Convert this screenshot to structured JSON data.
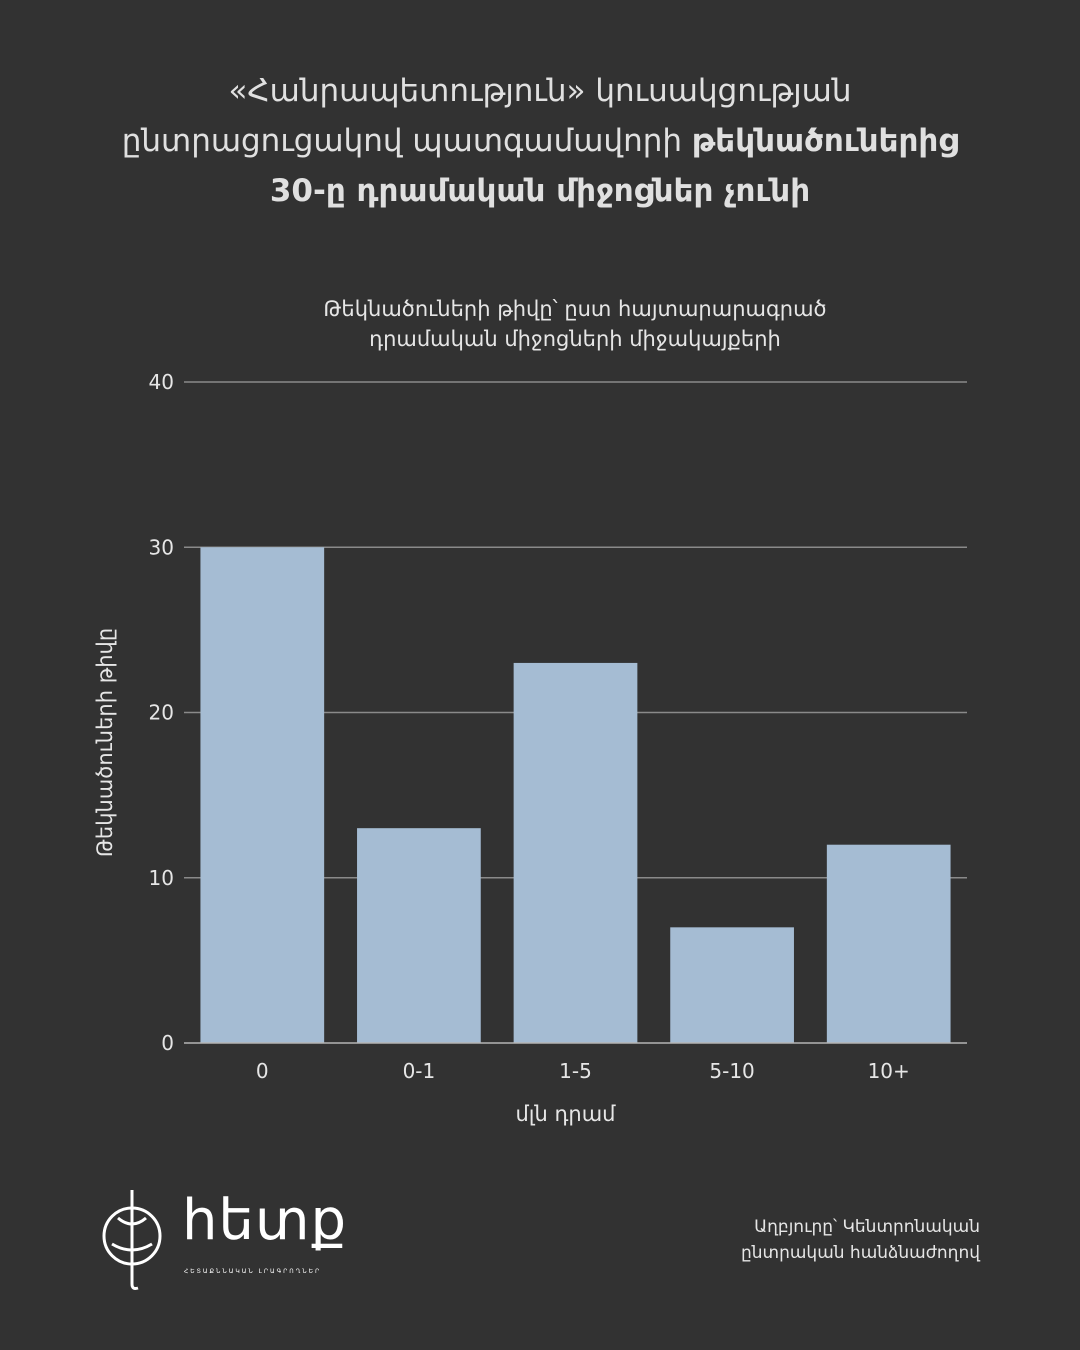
{
  "headline": {
    "line1": "«Հանրապետություն» կուսակցության",
    "line2_regular": "ընտրացուցակով պատգամավորի ",
    "line2_bold": "թեկնածուներից",
    "line3_bold": "30-ը դրամական միջոցներ չունի"
  },
  "chart_data": {
    "type": "bar",
    "title": "Թեկնածուների թիվը՝ ըստ հայտարարագրած դրամական միջոցների միջակայքերի",
    "title_line1": "Թեկնածուների թիվը՝ ըստ հայտարարագրած",
    "title_line2": "դրամական միջոցների միջակայքերի",
    "categories": [
      "0",
      "0-1",
      "1-5",
      "5-10",
      "10+"
    ],
    "values": [
      30,
      13,
      23,
      7,
      12
    ],
    "xlabel": "մլն դրամ",
    "ylabel": "Թեկնածուների թիվը",
    "ylim": [
      0,
      40
    ],
    "yticks": [
      0,
      10,
      20,
      30,
      40
    ],
    "grid": true,
    "bar_color": "#a5bcd3",
    "grid_color": "#8a8a8a"
  },
  "footer": {
    "source_line1": "Աղբյուրը՝ Կենտրոնական",
    "source_line2": "ընտրական հանձնաժողով",
    "logo_text": "hետք",
    "logo_tagline": "ՀԵՏԱՔՆՆԱԿԱՆ ԼՐԱԳՐՈՂՆԵՐ"
  }
}
